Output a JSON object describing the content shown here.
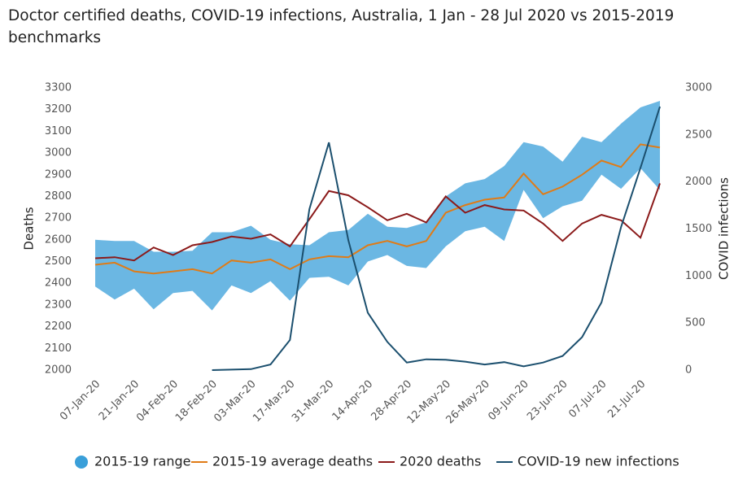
{
  "chart_data": {
    "type": "line",
    "title": "Doctor certified deaths, COVID-19 infections, Australia, 1 Jan - 28 Jul 2020 vs 2015-2019",
    "title_line2": "benchmarks",
    "ylabel": "Deaths",
    "y2label": "COVID infections",
    "categories": [
      "07-Jan-20",
      null,
      "21-Jan-20",
      null,
      "04-Feb-20",
      null,
      "18-Feb-20",
      null,
      "03-Mar-20",
      null,
      "17-Mar-20",
      null,
      "31-Mar-20",
      null,
      "14-Apr-20",
      null,
      "28-Apr-20",
      null,
      "12-May-20",
      null,
      "26-May-20",
      null,
      "09-Jun-20",
      null,
      "23-Jun-20",
      null,
      "07-Jul-20",
      null,
      "21-Jul-20",
      null
    ],
    "ylim": [
      2000,
      3300
    ],
    "yticks": [
      2000,
      2100,
      2200,
      2300,
      2400,
      2500,
      2600,
      2700,
      2800,
      2900,
      3000,
      3100,
      3200,
      3300
    ],
    "y2lim": [
      0,
      3000
    ],
    "y2ticks": [
      0,
      500,
      1000,
      1500,
      2000,
      2500,
      3000
    ],
    "grid": false,
    "legend": "bottom",
    "series": [
      {
        "name": "2015-19 range",
        "color": "#3a9fd9",
        "upper": [
          2600,
          2595,
          2595,
          2545,
          2545,
          2550,
          2635,
          2635,
          2665,
          2600,
          2580,
          2575,
          2635,
          2645,
          2720,
          2660,
          2655,
          2680,
          2800,
          2860,
          2880,
          2940,
          3050,
          3030,
          2960,
          3075,
          3050,
          3135,
          3210,
          3240
        ],
        "lower": [
          2385,
          2325,
          2375,
          2280,
          2355,
          2365,
          2275,
          2390,
          2355,
          2410,
          2320,
          2425,
          2430,
          2390,
          2500,
          2530,
          2480,
          2470,
          2570,
          2640,
          2660,
          2595,
          2830,
          2700,
          2755,
          2780,
          2900,
          2835,
          2930,
          2830
        ]
      },
      {
        "name": "2015-19 average deaths",
        "color": "#e07b16",
        "values": [
          2485,
          2495,
          2455,
          2445,
          2455,
          2465,
          2445,
          2505,
          2495,
          2510,
          2465,
          2510,
          2525,
          2520,
          2575,
          2595,
          2570,
          2595,
          2725,
          2760,
          2785,
          2795,
          2905,
          2810,
          2845,
          2900,
          2965,
          2935,
          3040,
          3025
        ]
      },
      {
        "name": "2020 deaths",
        "color": "#8b1a1a",
        "values": [
          2515,
          2520,
          2505,
          2565,
          2530,
          2575,
          2590,
          2615,
          2605,
          2625,
          2570,
          2695,
          2825,
          2805,
          2750,
          2690,
          2720,
          2680,
          2800,
          2725,
          2760,
          2740,
          2735,
          2675,
          2595,
          2675,
          2715,
          2690,
          2610,
          2860
        ]
      },
      {
        "name": "COVID-19 new infections",
        "color": "#1b4f6e",
        "axis": "y2",
        "values": [
          null,
          null,
          null,
          null,
          null,
          null,
          0,
          5,
          10,
          60,
          320,
          1710,
          2420,
          1380,
          610,
          300,
          80,
          115,
          110,
          90,
          60,
          85,
          40,
          80,
          150,
          350,
          720,
          1520,
          2150,
          2800
        ]
      }
    ]
  }
}
